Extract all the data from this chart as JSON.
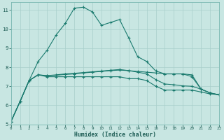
{
  "background_color": "#c8e6e2",
  "grid_color": "#a8ceca",
  "line_color": "#1a7a6e",
  "xlabel": "Humidex (Indice chaleur)",
  "xlim": [
    0,
    23
  ],
  "ylim": [
    5,
    11.4
  ],
  "yticks": [
    5,
    6,
    7,
    8,
    9,
    10,
    11
  ],
  "xticks": [
    0,
    1,
    2,
    3,
    4,
    5,
    6,
    7,
    8,
    9,
    10,
    11,
    12,
    13,
    14,
    15,
    16,
    17,
    18,
    19,
    20,
    21,
    22,
    23
  ],
  "series": [
    {
      "x": [
        0,
        1,
        2,
        3,
        4,
        5,
        6,
        7,
        8,
        9,
        10,
        11,
        12,
        13,
        14,
        15,
        16,
        17,
        18,
        19,
        20,
        21,
        22,
        23
      ],
      "y": [
        5.15,
        6.2,
        7.3,
        7.6,
        7.5,
        7.5,
        7.5,
        7.5,
        7.5,
        7.5,
        7.5,
        7.5,
        7.5,
        7.4,
        7.4,
        7.3,
        7.0,
        6.8,
        6.8,
        6.8,
        6.8,
        6.7,
        6.6,
        6.55
      ]
    },
    {
      "x": [
        0,
        1,
        2,
        3,
        4,
        5,
        6,
        7,
        8,
        9,
        10,
        11,
        12,
        13,
        14,
        15,
        16,
        17,
        18,
        19,
        20,
        21,
        22,
        23
      ],
      "y": [
        5.15,
        6.2,
        7.3,
        8.3,
        8.9,
        9.7,
        10.3,
        11.1,
        11.15,
        10.9,
        10.2,
        10.35,
        10.5,
        9.55,
        8.55,
        8.3,
        7.8,
        7.65,
        7.65,
        7.65,
        7.5,
        6.85,
        6.65,
        6.55
      ]
    },
    {
      "x": [
        0,
        1,
        2,
        3,
        4,
        5,
        6,
        7,
        8,
        9,
        10,
        11,
        12,
        13,
        14,
        15,
        16,
        17,
        18,
        19,
        20,
        21,
        22,
        23
      ],
      "y": [
        5.15,
        6.2,
        7.3,
        7.6,
        7.55,
        7.58,
        7.62,
        7.65,
        7.7,
        7.74,
        7.78,
        7.82,
        7.85,
        7.82,
        7.78,
        7.74,
        7.7,
        7.65,
        7.65,
        7.65,
        7.6,
        6.85,
        6.65,
        6.55
      ]
    },
    {
      "x": [
        0,
        1,
        2,
        3,
        4,
        5,
        6,
        7,
        8,
        9,
        10,
        11,
        12,
        13,
        14,
        15,
        16,
        17,
        18,
        19,
        20,
        21,
        22,
        23
      ],
      "y": [
        5.15,
        6.2,
        7.3,
        7.6,
        7.56,
        7.6,
        7.65,
        7.68,
        7.72,
        7.76,
        7.8,
        7.84,
        7.88,
        7.82,
        7.74,
        7.65,
        7.35,
        7.12,
        7.08,
        7.02,
        7.0,
        6.85,
        6.65,
        6.55
      ]
    }
  ]
}
